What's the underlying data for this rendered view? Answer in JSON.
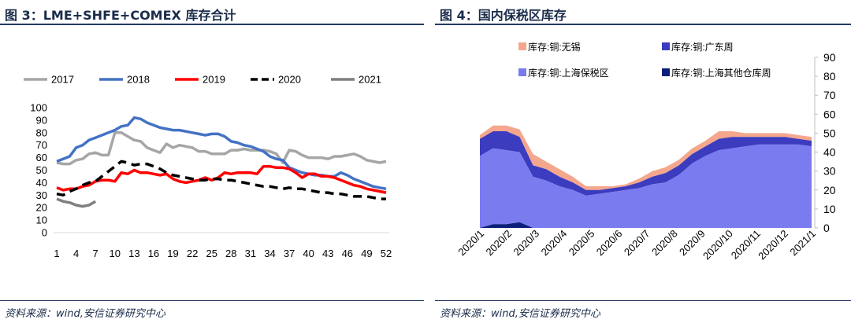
{
  "fig3": {
    "title": "图 3：LME+SHFE+COMEX 库存合计",
    "source": "资料来源：wind,安信证券研究中心"
  },
  "fig4": {
    "title": "图 4：国内保税区库存",
    "source": "资料来源：wind,安信证券研究中心"
  },
  "chart_data": [
    {
      "type": "line",
      "title": "",
      "xlabel": "",
      "ylabel": "",
      "x_tick_labels": [
        "1",
        "4",
        "7",
        "10",
        "13",
        "16",
        "19",
        "22",
        "25",
        "28",
        "31",
        "34",
        "37",
        "40",
        "43",
        "46",
        "49",
        "52"
      ],
      "xlim": [
        1,
        52
      ],
      "ylim": [
        0,
        100
      ],
      "y_ticks": [
        0,
        10,
        20,
        30,
        40,
        50,
        60,
        70,
        80,
        90,
        100
      ],
      "grid": false,
      "legend_position": "top",
      "colors": {
        "2017": "#a6a6a6",
        "2018": "#4472c4",
        "2019": "#ff0000",
        "2020": "#000000",
        "2021": "#7f7f7f"
      },
      "series": [
        {
          "name": "2017",
          "style": "solid",
          "x": [
            1,
            2,
            3,
            4,
            5,
            6,
            7,
            8,
            9,
            10,
            11,
            12,
            13,
            14,
            15,
            16,
            17,
            18,
            19,
            20,
            21,
            22,
            23,
            24,
            25,
            26,
            27,
            28,
            29,
            30,
            31,
            32,
            33,
            34,
            35,
            36,
            37,
            38,
            39,
            40,
            41,
            42,
            43,
            44,
            45,
            46,
            47,
            48,
            49,
            50,
            51,
            52
          ],
          "values": [
            56,
            55,
            55,
            58,
            59,
            63,
            64,
            62,
            62,
            80,
            80,
            77,
            74,
            73,
            68,
            66,
            64,
            71,
            68,
            70,
            69,
            68,
            65,
            65,
            63,
            63,
            63,
            66,
            66,
            67,
            66,
            66,
            66,
            65,
            63,
            56,
            66,
            65,
            62,
            60,
            60,
            60,
            59,
            61,
            61,
            62,
            63,
            61,
            58,
            57,
            56,
            57
          ]
        },
        {
          "name": "2018",
          "style": "solid",
          "x": [
            1,
            2,
            3,
            4,
            5,
            6,
            7,
            8,
            9,
            10,
            11,
            12,
            13,
            14,
            15,
            16,
            17,
            18,
            19,
            20,
            21,
            22,
            23,
            24,
            25,
            26,
            27,
            28,
            29,
            30,
            31,
            32,
            33,
            34,
            35,
            36,
            37,
            38,
            39,
            40,
            41,
            42,
            43,
            44,
            45,
            46,
            47,
            48,
            49,
            50,
            51,
            52
          ],
          "values": [
            57,
            59,
            61,
            68,
            70,
            74,
            76,
            78,
            80,
            82,
            85,
            86,
            92,
            91,
            88,
            86,
            84,
            83,
            82,
            82,
            81,
            80,
            79,
            78,
            79,
            79,
            77,
            73,
            72,
            70,
            69,
            67,
            65,
            61,
            59,
            58,
            52,
            50,
            48,
            47,
            46,
            46,
            45,
            45,
            48,
            46,
            43,
            41,
            39,
            37,
            36,
            35
          ]
        },
        {
          "name": "2019",
          "style": "solid",
          "x": [
            1,
            2,
            3,
            4,
            5,
            6,
            7,
            8,
            9,
            10,
            11,
            12,
            13,
            14,
            15,
            16,
            17,
            18,
            19,
            20,
            21,
            22,
            23,
            24,
            25,
            26,
            27,
            28,
            29,
            30,
            31,
            32,
            33,
            34,
            35,
            36,
            37,
            38,
            39,
            40,
            41,
            42,
            43,
            44,
            45,
            46,
            47,
            48,
            49,
            50,
            51,
            52
          ],
          "values": [
            36,
            34,
            35,
            35,
            37,
            38,
            41,
            42,
            42,
            41,
            48,
            47,
            50,
            48,
            48,
            47,
            46,
            47,
            43,
            41,
            40,
            41,
            42,
            44,
            42,
            44,
            48,
            47,
            48,
            48,
            48,
            47,
            53,
            53,
            52,
            52,
            51,
            48,
            44,
            47,
            47,
            45,
            45,
            44,
            42,
            40,
            38,
            37,
            35,
            34,
            33,
            32
          ]
        },
        {
          "name": "2020",
          "style": "dash",
          "x": [
            1,
            2,
            3,
            4,
            5,
            6,
            7,
            8,
            9,
            10,
            11,
            12,
            13,
            14,
            15,
            16,
            17,
            18,
            19,
            20,
            21,
            22,
            23,
            24,
            25,
            26,
            27,
            28,
            29,
            30,
            31,
            32,
            33,
            34,
            35,
            36,
            37,
            38,
            39,
            40,
            41,
            42,
            43,
            44,
            45,
            46,
            47,
            48,
            49,
            50,
            51,
            52
          ],
          "values": [
            31,
            30,
            33,
            35,
            38,
            40,
            41,
            45,
            49,
            53,
            57,
            56,
            54,
            55,
            55,
            53,
            51,
            48,
            46,
            45,
            44,
            43,
            42,
            42,
            43,
            43,
            42,
            42,
            41,
            40,
            39,
            38,
            37,
            37,
            36,
            35,
            36,
            35,
            35,
            34,
            33,
            32,
            32,
            31,
            31,
            30,
            29,
            29,
            29,
            28,
            27,
            27
          ]
        },
        {
          "name": "2021",
          "style": "solid",
          "x": [
            1,
            2,
            3,
            4,
            5,
            6,
            7
          ],
          "values": [
            27,
            25,
            24,
            22,
            21,
            22,
            25
          ]
        }
      ]
    },
    {
      "type": "area",
      "stacked": true,
      "title": "",
      "xlabel": "",
      "ylabel": "",
      "x_tick_labels": [
        "2020/1",
        "2020/2",
        "2020/3",
        "2020/4",
        "2020/5",
        "2020/6",
        "2020/7",
        "2020/8",
        "2020/9",
        "2020/10",
        "2020/11",
        "2020/12",
        "2021/1"
      ],
      "ylim": [
        0,
        90
      ],
      "y_ticks": [
        0,
        10,
        20,
        30,
        40,
        50,
        60,
        70,
        80,
        90
      ],
      "y_axis_side": "right",
      "grid": false,
      "legend_position": "top",
      "x": [
        "2020/1",
        "2020/1b",
        "2020/2",
        "2020/2b",
        "2020/3",
        "2020/3b",
        "2020/4",
        "2020/4b",
        "2020/5",
        "2020/5b",
        "2020/6",
        "2020/6b",
        "2020/7",
        "2020/7b",
        "2020/8",
        "2020/8b",
        "2020/9",
        "2020/9b",
        "2020/10",
        "2020/10b",
        "2020/11",
        "2020/11b",
        "2020/12",
        "2020/12b",
        "2021/1",
        "2021/1b"
      ],
      "series": [
        {
          "name": "库存:铜:上海其他仓库周",
          "color": "#0b1f7a",
          "values": [
            0,
            2,
            2,
            3,
            0,
            0,
            0,
            0,
            0,
            0,
            0,
            0,
            0,
            0,
            0,
            0,
            0,
            0,
            0,
            0,
            0,
            0,
            0,
            0,
            0,
            0
          ]
        },
        {
          "name": "库存:铜:上海保税区",
          "color": "#7b7bf0",
          "values": [
            38,
            40,
            39,
            37,
            27,
            25,
            22,
            20,
            17,
            18,
            19,
            20,
            21,
            23,
            24,
            28,
            34,
            38,
            41,
            42,
            43,
            44,
            44,
            44,
            44,
            43
          ]
        },
        {
          "name": "库存:铜:广东周",
          "color": "#3c3cbf",
          "values": [
            9,
            9,
            10,
            8,
            6,
            6,
            5,
            4,
            3,
            2,
            2,
            2,
            3,
            4,
            5,
            5,
            5,
            5,
            6,
            6,
            5,
            4,
            4,
            4,
            3,
            3
          ]
        },
        {
          "name": "库存:铜:无锡",
          "color": "#f4a78c",
          "values": [
            2,
            3,
            3,
            4,
            6,
            4,
            4,
            3,
            2,
            2,
            1,
            1,
            2,
            3,
            3,
            3,
            3,
            3,
            4,
            3,
            2,
            2,
            2,
            2,
            2,
            2
          ]
        }
      ]
    }
  ]
}
